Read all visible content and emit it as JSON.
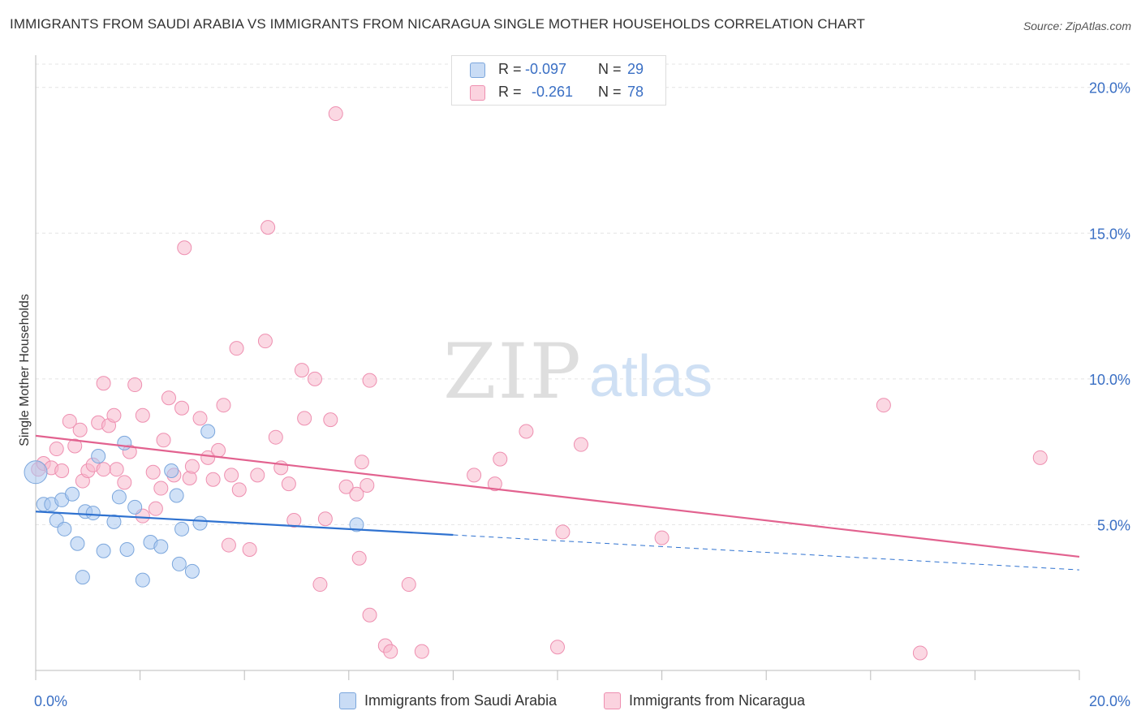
{
  "title": "IMMIGRANTS FROM SAUDI ARABIA VS IMMIGRANTS FROM NICARAGUA SINGLE MOTHER HOUSEHOLDS CORRELATION CHART",
  "source": "Source: ZipAtlas.com",
  "watermark": {
    "zip": "ZIP",
    "atlas": "atlas"
  },
  "colors": {
    "blue_fill": "#a9c8f0",
    "blue_stroke": "#7ba6dc",
    "blue_line": "#2f72d0",
    "pink_fill": "#f7b8cc",
    "pink_stroke": "#ee8fb0",
    "pink_line": "#e2628f",
    "tick_label": "#3a6fc4",
    "grid": "#e4e4e4"
  },
  "legend": {
    "rows": [
      {
        "r_label": "R =",
        "r_value": "-0.097",
        "n_label": "N =",
        "n_value": "29",
        "series": "saudi"
      },
      {
        "r_label": "R =",
        "r_value": "-0.261",
        "n_label": "N =",
        "n_value": "78",
        "series": "nicaragua"
      }
    ]
  },
  "bottom_legend": {
    "saudi": "Immigrants from Saudi Arabia",
    "nicaragua": "Immigrants from Nicaragua"
  },
  "chart_data": {
    "type": "scatter",
    "title": "IMMIGRANTS FROM SAUDI ARABIA VS IMMIGRANTS FROM NICARAGUA SINGLE MOTHER HOUSEHOLDS CORRELATION CHART",
    "xlabel": "",
    "ylabel": "Single Mother Households",
    "xlim": [
      0,
      20
    ],
    "ylim": [
      0,
      20.8
    ],
    "x_tick_labels": [
      {
        "value": 0,
        "label": "0.0%"
      },
      {
        "value": 20,
        "label": "20.0%"
      }
    ],
    "y_tick_labels": [
      {
        "value": 5,
        "label": "5.0%"
      },
      {
        "value": 10,
        "label": "10.0%"
      },
      {
        "value": 15,
        "label": "15.0%"
      },
      {
        "value": 20,
        "label": "20.0%"
      }
    ],
    "series": [
      {
        "name": "Immigrants from Saudi Arabia",
        "key": "saudi",
        "r": -0.097,
        "n": 29,
        "trend": {
          "x0": 0,
          "y0": 5.45,
          "x_solid_end": 8.0,
          "x1": 20,
          "y1": 3.45
        },
        "points": [
          [
            0.0,
            6.8
          ],
          [
            0.15,
            5.7
          ],
          [
            0.3,
            5.7
          ],
          [
            0.4,
            5.15
          ],
          [
            0.55,
            4.85
          ],
          [
            0.5,
            5.85
          ],
          [
            0.7,
            6.05
          ],
          [
            0.8,
            4.35
          ],
          [
            0.9,
            3.2
          ],
          [
            0.95,
            5.45
          ],
          [
            1.1,
            5.4
          ],
          [
            1.2,
            7.35
          ],
          [
            1.3,
            4.1
          ],
          [
            1.5,
            5.1
          ],
          [
            1.6,
            5.95
          ],
          [
            1.7,
            7.8
          ],
          [
            1.75,
            4.15
          ],
          [
            1.9,
            5.6
          ],
          [
            2.05,
            3.1
          ],
          [
            2.2,
            4.4
          ],
          [
            2.4,
            4.25
          ],
          [
            2.6,
            6.85
          ],
          [
            2.7,
            6.0
          ],
          [
            2.75,
            3.65
          ],
          [
            2.8,
            4.85
          ],
          [
            3.0,
            3.4
          ],
          [
            3.15,
            5.05
          ],
          [
            3.3,
            8.2
          ],
          [
            6.15,
            5.0
          ]
        ]
      },
      {
        "name": "Immigrants from Nicaragua",
        "key": "nicaragua",
        "r": -0.261,
        "n": 78,
        "trend": {
          "x0": 0,
          "y0": 8.05,
          "x1": 20,
          "y1": 3.9
        },
        "points": [
          [
            0.05,
            6.9
          ],
          [
            0.15,
            7.1
          ],
          [
            0.3,
            6.95
          ],
          [
            0.4,
            7.6
          ],
          [
            0.5,
            6.85
          ],
          [
            0.65,
            8.55
          ],
          [
            0.75,
            7.7
          ],
          [
            0.85,
            8.25
          ],
          [
            0.9,
            6.5
          ],
          [
            1.0,
            6.85
          ],
          [
            1.1,
            7.05
          ],
          [
            1.2,
            8.5
          ],
          [
            1.3,
            9.85
          ],
          [
            1.4,
            8.4
          ],
          [
            1.5,
            8.75
          ],
          [
            1.55,
            6.9
          ],
          [
            1.7,
            6.45
          ],
          [
            1.8,
            7.5
          ],
          [
            1.9,
            9.8
          ],
          [
            2.05,
            5.3
          ],
          [
            2.05,
            8.75
          ],
          [
            2.25,
            6.8
          ],
          [
            2.4,
            6.25
          ],
          [
            2.45,
            7.9
          ],
          [
            2.55,
            9.35
          ],
          [
            2.65,
            6.7
          ],
          [
            2.8,
            9.0
          ],
          [
            2.85,
            14.5
          ],
          [
            2.95,
            6.6
          ],
          [
            3.0,
            7.0
          ],
          [
            3.15,
            8.65
          ],
          [
            3.3,
            7.3
          ],
          [
            3.4,
            6.55
          ],
          [
            3.5,
            7.55
          ],
          [
            3.6,
            9.1
          ],
          [
            3.7,
            4.3
          ],
          [
            3.75,
            6.7
          ],
          [
            3.85,
            11.05
          ],
          [
            3.9,
            6.2
          ],
          [
            4.1,
            4.15
          ],
          [
            4.25,
            6.7
          ],
          [
            4.4,
            11.3
          ],
          [
            4.45,
            15.2
          ],
          [
            4.6,
            8.0
          ],
          [
            4.7,
            6.95
          ],
          [
            4.85,
            6.4
          ],
          [
            4.95,
            5.15
          ],
          [
            5.1,
            10.3
          ],
          [
            5.15,
            8.65
          ],
          [
            5.35,
            10.0
          ],
          [
            5.45,
            2.95
          ],
          [
            5.55,
            5.2
          ],
          [
            5.65,
            8.6
          ],
          [
            5.75,
            19.1
          ],
          [
            5.95,
            6.3
          ],
          [
            6.15,
            6.05
          ],
          [
            6.2,
            3.85
          ],
          [
            6.25,
            7.15
          ],
          [
            6.35,
            6.35
          ],
          [
            6.4,
            1.9
          ],
          [
            6.4,
            9.95
          ],
          [
            6.7,
            0.85
          ],
          [
            6.8,
            0.65
          ],
          [
            7.15,
            2.95
          ],
          [
            7.4,
            0.65
          ],
          [
            8.4,
            6.7
          ],
          [
            8.8,
            6.4
          ],
          [
            8.9,
            7.25
          ],
          [
            9.4,
            8.2
          ],
          [
            10.0,
            0.8
          ],
          [
            10.1,
            4.75
          ],
          [
            10.45,
            7.75
          ],
          [
            12.0,
            4.55
          ],
          [
            16.25,
            9.1
          ],
          [
            16.95,
            0.6
          ],
          [
            19.25,
            7.3
          ],
          [
            1.3,
            6.9
          ],
          [
            2.3,
            5.55
          ]
        ]
      }
    ],
    "legend_position": "top-center"
  }
}
